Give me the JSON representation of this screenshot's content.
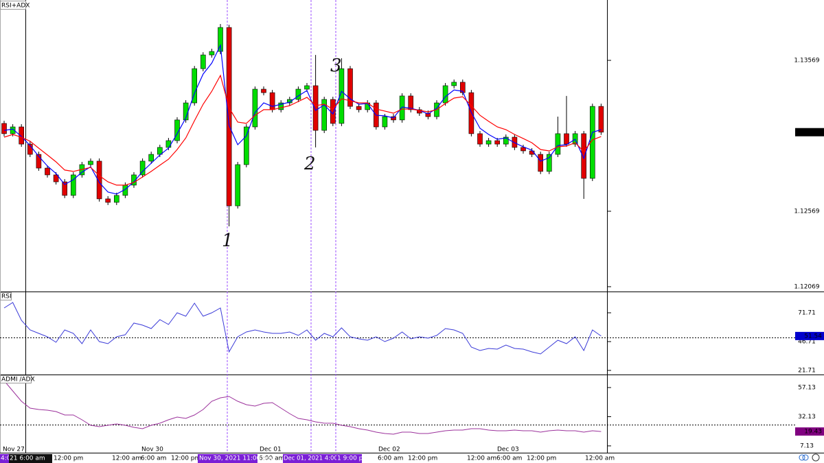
{
  "chart_data": [
    {
      "type": "candlestick",
      "title": "RSI+ADX",
      "open": [
        1.13151,
        1.13083,
        1.13128,
        1.13014,
        1.12946,
        1.12855,
        1.1281,
        1.12764,
        1.12674,
        1.1281,
        1.12878,
        1.12901,
        1.12651,
        1.12628,
        1.12674,
        1.12742,
        1.1281,
        1.12901,
        1.12946,
        1.12992,
        1.13037,
        1.13174,
        1.13287,
        1.13514,
        1.13605,
        1.13628,
        1.13787,
        1.12605,
        1.12878,
        1.13128,
        1.13378,
        1.13355,
        1.13242,
        1.13287,
        1.1331,
        1.13378,
        1.13401,
        1.13105,
        1.1331,
        1.13151,
        1.13514,
        1.13264,
        1.13242,
        1.13287,
        1.13128,
        1.13196,
        1.13174,
        1.13333,
        1.13242,
        1.13219,
        1.13196,
        1.13287,
        1.13401,
        1.13424,
        1.13355,
        1.13083,
        1.13014,
        1.13037,
        1.13014,
        1.1306,
        1.12992,
        1.12969,
        1.12946,
        1.12833,
        1.12946,
        1.13083,
        1.13014,
        1.13083,
        1.12787,
        1.13264
      ],
      "high": [
        1.13169,
        1.13146,
        1.13146,
        1.13032,
        1.12964,
        1.12873,
        1.12828,
        1.12782,
        1.12828,
        1.12896,
        1.12919,
        1.12919,
        1.12669,
        1.12692,
        1.1276,
        1.12828,
        1.12919,
        1.12964,
        1.1301,
        1.13055,
        1.13192,
        1.13305,
        1.13532,
        1.13623,
        1.13646,
        1.1381,
        1.13805,
        1.12896,
        1.13146,
        1.13396,
        1.13396,
        1.13373,
        1.13305,
        1.13328,
        1.13396,
        1.13419,
        1.13605,
        1.13328,
        1.13328,
        1.13583,
        1.13532,
        1.13282,
        1.13305,
        1.13305,
        1.13214,
        1.13214,
        1.13351,
        1.13351,
        1.1326,
        1.13237,
        1.13305,
        1.13419,
        1.13442,
        1.13442,
        1.13373,
        1.13101,
        1.13055,
        1.13055,
        1.13078,
        1.13078,
        1.1301,
        1.12987,
        1.12964,
        1.12964,
        1.13196,
        1.13333,
        1.13101,
        1.13101,
        1.13282,
        1.13282
      ],
      "low": [
        1.13065,
        1.13065,
        1.12996,
        1.12928,
        1.12837,
        1.12792,
        1.12746,
        1.12656,
        1.12656,
        1.12792,
        1.1286,
        1.12633,
        1.1261,
        1.1261,
        1.12656,
        1.12724,
        1.12792,
        1.12883,
        1.12928,
        1.12974,
        1.13019,
        1.13156,
        1.13269,
        1.13496,
        1.13587,
        1.1361,
        1.12469,
        1.12587,
        1.1286,
        1.1311,
        1.13337,
        1.13224,
        1.13224,
        1.13269,
        1.13292,
        1.1336,
        1.12992,
        1.13087,
        1.13133,
        1.13133,
        1.13246,
        1.13224,
        1.13224,
        1.1311,
        1.1311,
        1.13156,
        1.13156,
        1.13224,
        1.13201,
        1.13178,
        1.13178,
        1.13269,
        1.13383,
        1.13337,
        1.13065,
        1.12996,
        1.12996,
        1.12996,
        1.12996,
        1.12974,
        1.12951,
        1.12928,
        1.12815,
        1.12815,
        1.12928,
        1.12996,
        1.12996,
        1.12651,
        1.12769,
        1.13075
      ],
      "close": [
        1.13083,
        1.13128,
        1.13014,
        1.12946,
        1.12855,
        1.1281,
        1.12764,
        1.12674,
        1.1281,
        1.12878,
        1.12901,
        1.12651,
        1.12628,
        1.12674,
        1.12742,
        1.1281,
        1.12901,
        1.12946,
        1.12992,
        1.13037,
        1.13174,
        1.13287,
        1.13514,
        1.13605,
        1.13628,
        1.13787,
        1.12605,
        1.12878,
        1.13128,
        1.13378,
        1.13355,
        1.13242,
        1.13287,
        1.1331,
        1.13378,
        1.13401,
        1.13105,
        1.1331,
        1.13151,
        1.13514,
        1.13264,
        1.13242,
        1.13287,
        1.13128,
        1.13196,
        1.13174,
        1.13333,
        1.13242,
        1.13219,
        1.13196,
        1.13287,
        1.13401,
        1.13424,
        1.13355,
        1.13083,
        1.13014,
        1.13037,
        1.13014,
        1.1306,
        1.12992,
        1.12969,
        1.12946,
        1.12833,
        1.12946,
        1.13083,
        1.13014,
        1.13083,
        1.12787,
        1.13264,
        1.13093
      ],
      "up_color": "#00dd00",
      "down_color": "#e00000",
      "ma_series": [
        {
          "color": "#0000ff",
          "values": [
            1.13105,
            1.13114,
            1.13064,
            1.13005,
            1.12933,
            1.12869,
            1.12819,
            1.12746,
            1.12778,
            1.12828,
            1.12864,
            1.1276,
            1.12696,
            1.12683,
            1.12714,
            1.12764,
            1.12833,
            1.12887,
            1.12942,
            1.12987,
            1.13083,
            1.13187,
            1.13351,
            1.13478,
            1.13551,
            1.13669,
            1.13137,
            1.1301,
            1.13069,
            1.13224,
            1.13287,
            1.13264,
            1.13278,
            1.13292,
            1.13333,
            1.13369,
            1.13237,
            1.13274,
            1.13214,
            1.13364,
            1.13314,
            1.13278,
            1.13283,
            1.13205,
            1.13201,
            1.13187,
            1.1326,
            1.13251,
            1.13237,
            1.13214,
            1.13251,
            1.13328,
            1.13373,
            1.13364,
            1.13224,
            1.13119,
            1.13078,
            1.13046,
            1.13055,
            1.13023,
            1.12996,
            1.12974,
            1.12901,
            1.12924,
            1.13005,
            1.1301,
            1.13046,
            1.12919,
            1.13092,
            1.1311
          ]
        },
        {
          "color": "#ff0000",
          "values": [
            1.1306,
            1.13078,
            1.1306,
            1.13033,
            1.12987,
            1.12942,
            1.12896,
            1.12842,
            1.12833,
            1.12846,
            1.1286,
            1.12805,
            1.12764,
            1.12742,
            1.12742,
            1.1276,
            1.12796,
            1.12833,
            1.12874,
            1.12914,
            1.12978,
            1.13055,
            1.13169,
            1.13278,
            1.13364,
            1.13469,
            1.13255,
            1.1316,
            1.13151,
            1.13205,
            1.13242,
            1.13242,
            1.13255,
            1.13269,
            1.13296,
            1.13324,
            1.13269,
            1.13278,
            1.13246,
            1.13314,
            1.13301,
            1.13287,
            1.13287,
            1.13246,
            1.13233,
            1.13219,
            1.13246,
            1.13246,
            1.13237,
            1.13228,
            1.13242,
            1.13283,
            1.13319,
            1.13328,
            1.13269,
            1.13205,
            1.13165,
            1.13128,
            1.1311,
            1.13078,
            1.13051,
            1.13023,
            1.12978,
            1.12969,
            1.12996,
            1.13001,
            1.13023,
            1.12965,
            1.13042,
            1.13064
          ]
        }
      ],
      "ylim": [
        1.12037,
        1.13969
      ],
      "yticks": [
        1.12069,
        1.12569,
        1.13569
      ],
      "annotations": [
        "1",
        "2",
        "3"
      ]
    },
    {
      "type": "line",
      "title": "RSI",
      "series": [
        {
          "color": "#3a3ad8",
          "values": [
            75.88,
            80.64,
            65.16,
            56.83,
            53.85,
            50.88,
            46.12,
            56.83,
            53.85,
            44.93,
            56.83,
            46.71,
            44.93,
            50.88,
            52.66,
            62.78,
            61.0,
            58.02,
            65.76,
            61.59,
            71.71,
            68.73,
            80.04,
            68.73,
            71.71,
            75.88,
            37.78,
            50.88,
            55.04,
            56.83,
            55.04,
            53.85,
            53.85,
            55.04,
            52.07,
            56.83,
            47.9,
            53.85,
            50.88,
            58.62,
            50.88,
            49.09,
            47.9,
            50.88,
            46.71,
            49.69,
            55.04,
            49.09,
            50.88,
            49.69,
            52.07,
            58.02,
            56.83,
            53.85,
            41.95,
            38.97,
            40.76,
            40.17,
            43.74,
            40.76,
            40.17,
            37.78,
            36.0,
            41.95,
            47.9,
            44.93,
            50.88,
            38.97,
            56.83,
            51.54
          ]
        }
      ],
      "ylim": [
        18.14,
        89.56
      ],
      "yticks": [
        21.71,
        46.71,
        71.71
      ],
      "level": 50,
      "label_color": "#0000cc"
    },
    {
      "type": "line",
      "title": "ADMI /ADX",
      "series": [
        {
          "color": "#9b309b",
          "values": [
            63.01,
            54.19,
            45.37,
            39.48,
            38.31,
            37.72,
            36.54,
            33.6,
            33.6,
            29.48,
            24.78,
            23.6,
            24.78,
            25.96,
            24.78,
            23.01,
            21.84,
            24.78,
            26.54,
            29.48,
            31.84,
            30.66,
            33.6,
            38.31,
            45.37,
            48.31,
            49.48,
            45.37,
            42.43,
            41.25,
            43.6,
            44.19,
            39.48,
            34.78,
            30.66,
            29.48,
            27.72,
            26.54,
            26.54,
            24.78,
            23.6,
            21.84,
            20.66,
            18.9,
            17.72,
            17.13,
            18.9,
            18.9,
            17.72,
            17.72,
            18.9,
            20.07,
            20.66,
            20.66,
            21.84,
            21.84,
            20.66,
            20.07,
            20.07,
            20.66,
            20.07,
            20.07,
            18.9,
            20.07,
            20.66,
            20.07,
            20.07,
            18.9,
            20.07,
            19.43
          ]
        }
      ],
      "ylim": [
        1.25,
        67.72
      ],
      "yticks": [
        57.13,
        32.13,
        7.13
      ],
      "level": 25,
      "label_color": "#800080"
    }
  ],
  "time_axis": {
    "labels": [
      "Nov 27",
      "12:00 pm",
      "12:00 am",
      "Nov 30",
      "6:00 am",
      "12:00 pm",
      "Dec 01",
      "6:00 am",
      "Dec 02",
      "6:00 am",
      "12:00 pm",
      "12:00 am",
      "Dec 03",
      "6:00 am",
      "12:00 pm",
      "12:00 am"
    ],
    "highlights": [
      "Nov 30, 2021 11:00 pm",
      "Dec 01, 2021 4:00 pm",
      "1 9:00 pm"
    ],
    "left": [
      "4:0",
      "21 6:00 am"
    ]
  }
}
